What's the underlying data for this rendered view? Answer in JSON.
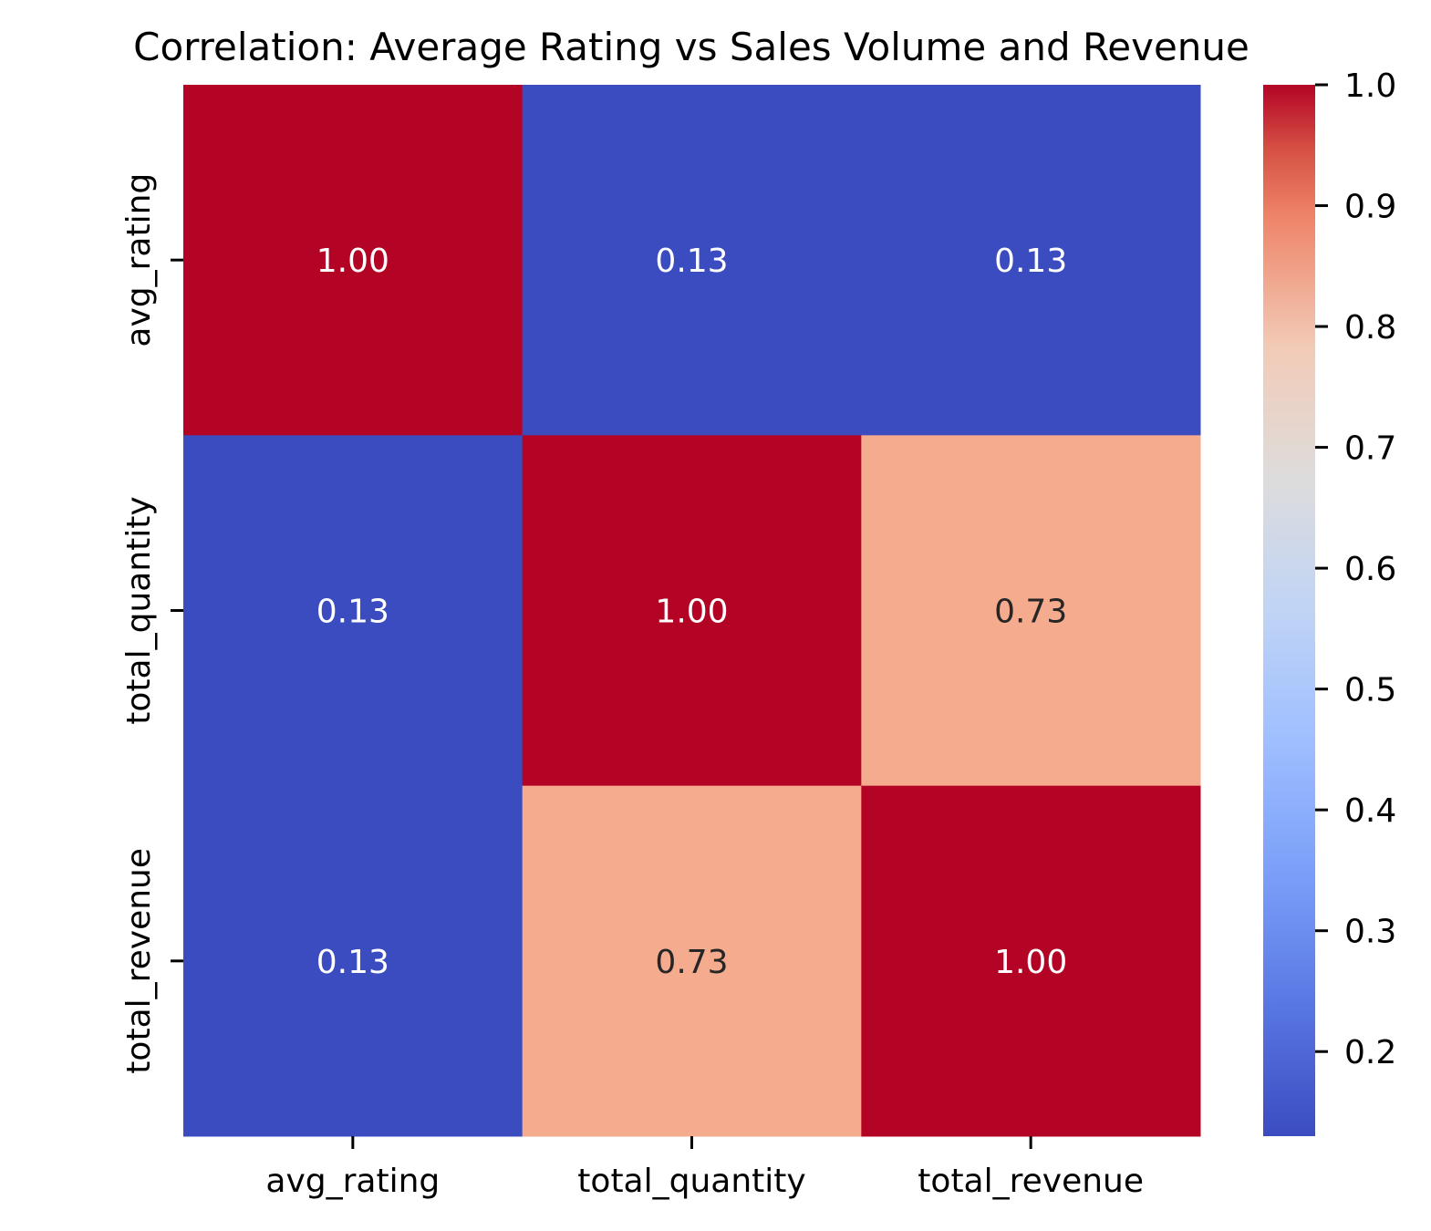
{
  "chart_data": {
    "type": "heatmap",
    "title": "Correlation: Average Rating vs Sales Volume and Revenue",
    "x_labels": [
      "avg_rating",
      "total_quantity",
      "total_revenue"
    ],
    "y_labels": [
      "avg_rating",
      "total_quantity",
      "total_revenue"
    ],
    "values": [
      [
        1.0,
        0.13,
        0.13
      ],
      [
        0.13,
        1.0,
        0.73
      ],
      [
        0.13,
        0.73,
        1.0
      ]
    ],
    "annotations": [
      [
        "1.00",
        "0.13",
        "0.13"
      ],
      [
        "0.13",
        "1.00",
        "0.73"
      ],
      [
        "0.13",
        "0.73",
        "1.00"
      ]
    ],
    "colormap": "coolwarm",
    "vmin": 0.13,
    "vmax": 1.0,
    "colorbar_ticks": [
      "0.2",
      "0.3",
      "0.4",
      "0.5",
      "0.6",
      "0.7",
      "0.8",
      "0.9",
      "1.0"
    ],
    "colorbar_tick_values": [
      0.2,
      0.3,
      0.4,
      0.5,
      0.6,
      0.7,
      0.8,
      0.9,
      1.0
    ],
    "colorbar_position": "right",
    "grid": false,
    "colors": {
      "low": "#3b4cc0",
      "high": "#b40426",
      "mid": "#f5ab8e"
    }
  }
}
